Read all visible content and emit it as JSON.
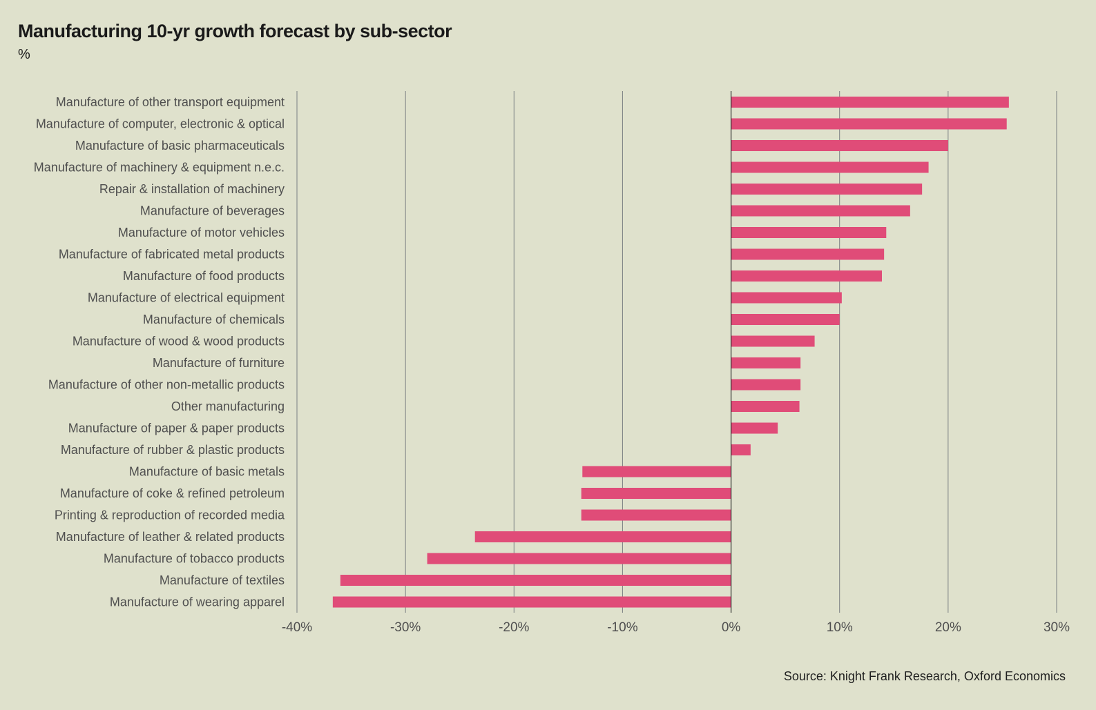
{
  "header": {
    "title": "Manufacturing 10-yr growth forecast by sub-sector",
    "subtitle": "%"
  },
  "footer": {
    "source": "Source: Knight Frank Research, Oxford Economics"
  },
  "colors": {
    "background": "#dfe1cc",
    "bar": "#e04c78",
    "grid": "#7a8082",
    "zero_line": "#2b2b2b",
    "label": "#4f4f4f"
  },
  "chart_data": {
    "type": "bar",
    "orientation": "horizontal",
    "title": "Manufacturing 10-yr growth forecast by sub-sector",
    "subtitle": "%",
    "xlabel": "",
    "ylabel": "",
    "xlim": [
      -40,
      30
    ],
    "x_ticks": [
      -40,
      -30,
      -20,
      -10,
      0,
      10,
      20,
      30
    ],
    "x_tick_labels": [
      "-40%",
      "-30%",
      "-20%",
      "-10%",
      "0%",
      "10%",
      "20%",
      "30%"
    ],
    "grid": "vertical",
    "legend": "none",
    "categories": [
      "Manufacture of other transport equipment",
      "Manufacture of computer, electronic & optical",
      "Manufacture of basic pharmaceuticals",
      "Manufacture of machinery & equipment n.e.c.",
      "Repair & installation of machinery",
      "Manufacture of beverages",
      "Manufacture of motor vehicles",
      "Manufacture of fabricated metal products",
      "Manufacture of food products",
      "Manufacture of electrical equipment",
      "Manufacture of chemicals",
      "Manufacture of wood & wood products",
      "Manufacture of furniture",
      "Manufacture of other non-metallic products",
      "Other manufacturing",
      "Manufacture of paper & paper products",
      "Manufacture of rubber & plastic products",
      "Manufacture of basic metals",
      "Manufacture of coke & refined petroleum",
      "Printing & reproduction of recorded media",
      "Manufacture of leather & related products",
      "Manufacture of tobacco products",
      "Manufacture of textiles",
      "Manufacture of wearing apparel"
    ],
    "values": [
      25.6,
      25.4,
      20.0,
      18.2,
      17.6,
      16.5,
      14.3,
      14.1,
      13.9,
      10.2,
      10.0,
      7.7,
      6.4,
      6.4,
      6.3,
      4.3,
      1.8,
      -13.7,
      -13.8,
      -13.8,
      -23.6,
      -28.0,
      -36.0,
      -36.7
    ]
  }
}
